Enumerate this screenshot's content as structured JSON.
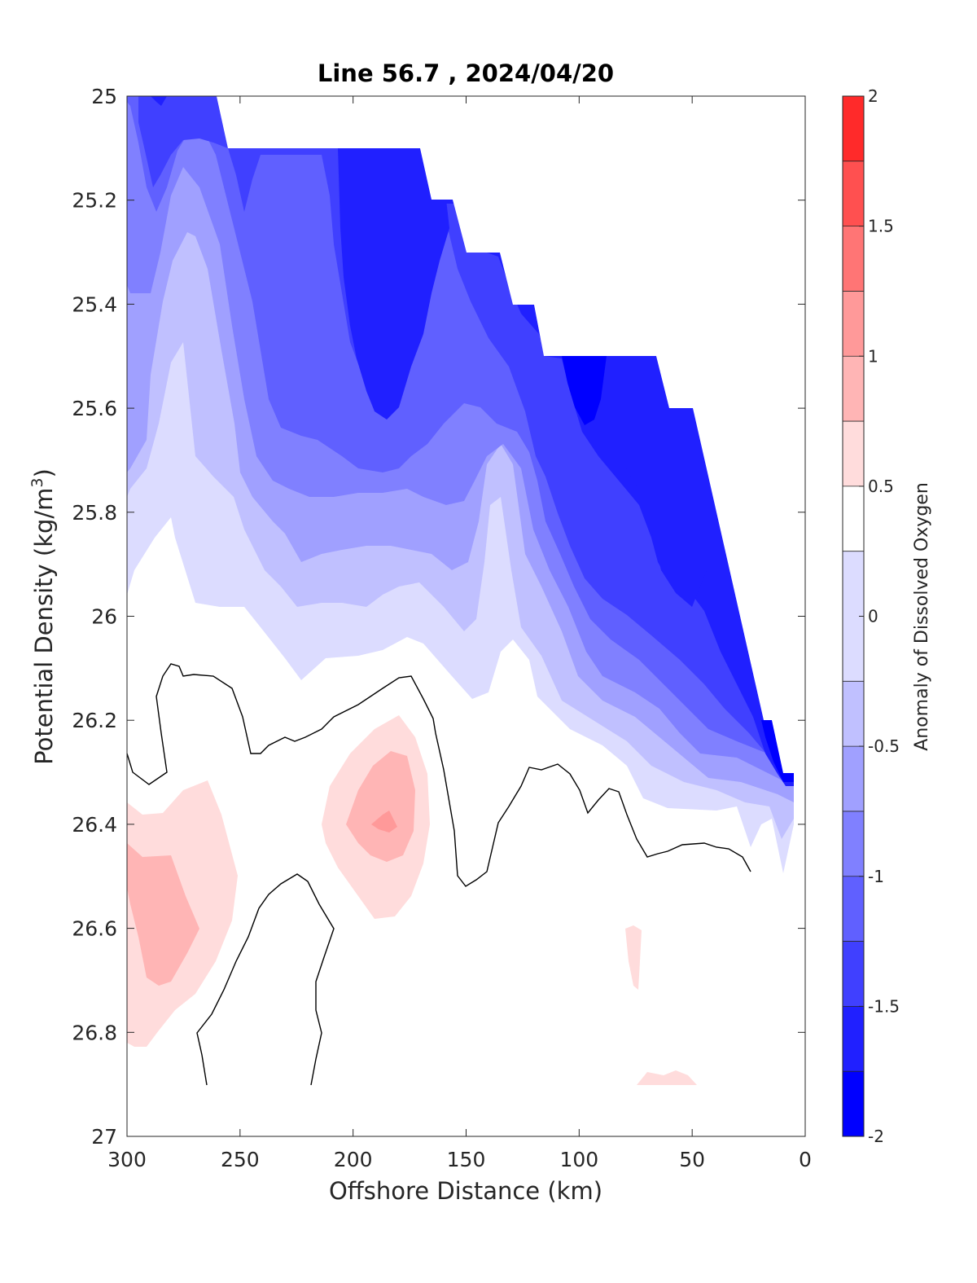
{
  "chart_data": {
    "type": "contour",
    "title": "Line 56.7 , 2024/04/20",
    "xlabel": "Offshore Distance (km)",
    "ylabel_main": "Potential Density (kg/m",
    "ylabel_sup": "3",
    "ylabel_tail": ")",
    "xlim": [
      300,
      0
    ],
    "ylim": [
      25,
      27
    ],
    "y_reversed": true,
    "x_reversed": true,
    "xticks": [
      "300",
      "250",
      "200",
      "150",
      "100",
      "50",
      "0"
    ],
    "xtick_values": [
      300,
      250,
      200,
      150,
      100,
      50,
      0
    ],
    "yticks": [
      "25",
      "25.2",
      "25.4",
      "25.6",
      "25.8",
      "26",
      "26.2",
      "26.4",
      "26.6",
      "26.8",
      "27"
    ],
    "ytick_values": [
      25,
      25.2,
      25.4,
      25.6,
      25.8,
      26,
      26.2,
      26.4,
      26.6,
      26.8,
      27
    ],
    "colorbar": {
      "label": "Anomaly of Dissolved Oxygen",
      "range": [
        -2,
        2
      ],
      "ticks": [
        "2",
        "1.5",
        "1",
        "0.5",
        "0",
        "-0.5",
        "-1",
        "-1.5",
        "-2"
      ],
      "tick_values": [
        2,
        1.5,
        1,
        0.5,
        0,
        -0.5,
        -1,
        -1.5,
        -2
      ],
      "levels": [
        -2,
        -1.75,
        -1.5,
        -1.25,
        -1,
        -0.75,
        -0.5,
        -0.25,
        0.25,
        0.5,
        0.75,
        1,
        1.25,
        1.5,
        1.75,
        2
      ],
      "colors": [
        "#0000ff",
        "#2020ff",
        "#4040ff",
        "#6060ff",
        "#8080ff",
        "#a0a0ff",
        "#c0c0ff",
        "#dcdcff",
        "#ffffff",
        "#ffdcdc",
        "#ffb5b5",
        "#ff9999",
        "#ff7575",
        "#ff5050",
        "#ff2a2a",
        "#ff0000"
      ]
    },
    "grid": false,
    "contour_line_level": 0
  }
}
